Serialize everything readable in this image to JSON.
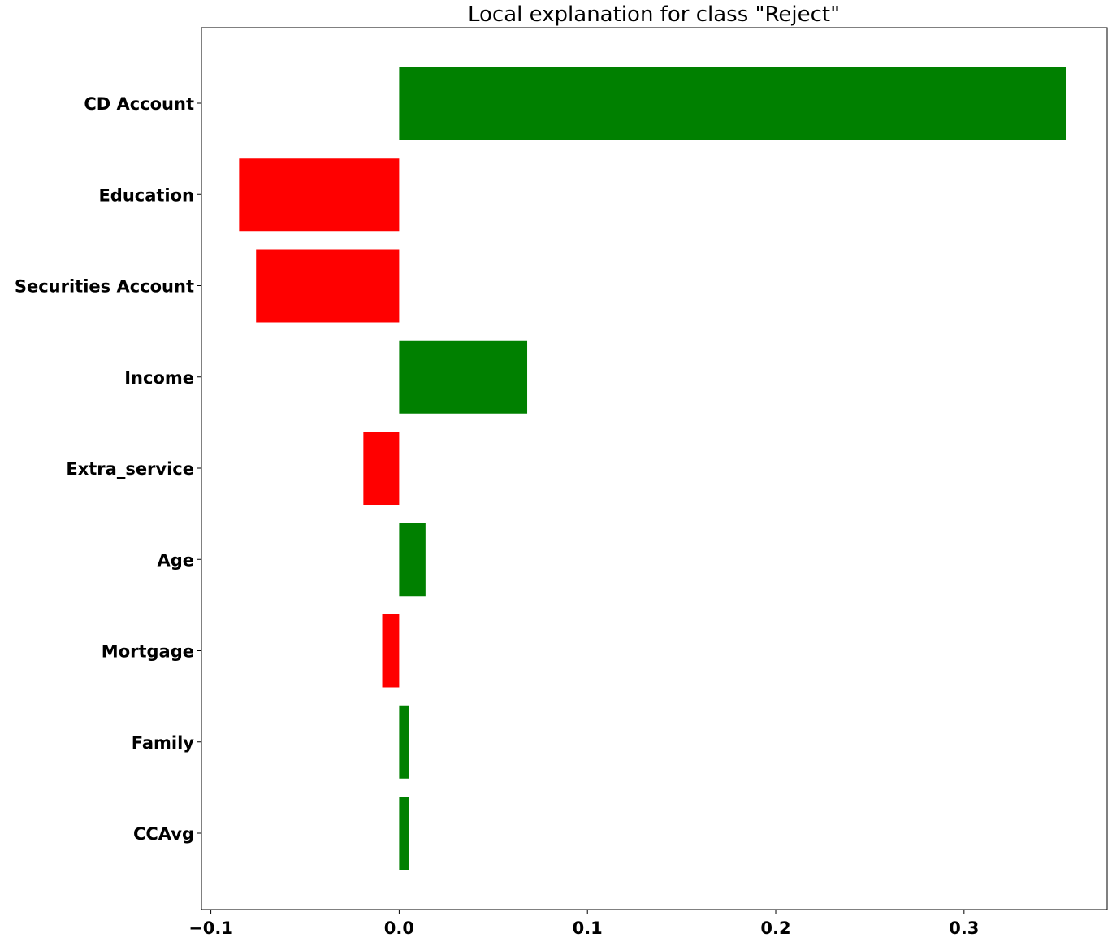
{
  "chart_data": {
    "type": "bar",
    "orientation": "horizontal",
    "title": "Local explanation for class \"Reject\"",
    "xlabel": "",
    "ylabel": "",
    "xlim": [
      -0.105,
      0.376
    ],
    "xticks": [
      -0.1,
      0.0,
      0.1,
      0.2,
      0.3
    ],
    "xtick_labels": [
      "−0.1",
      "0.0",
      "0.1",
      "0.2",
      "0.3"
    ],
    "grid": false,
    "legend": false,
    "categories": [
      "CD Account",
      "Education",
      "Securities Account",
      "Income",
      "Extra_service",
      "Age",
      "Mortgage",
      "Family",
      "CCAvg"
    ],
    "values": [
      0.354,
      -0.085,
      -0.076,
      0.068,
      -0.019,
      0.014,
      -0.009,
      0.005,
      0.005
    ],
    "colors": {
      "positive": "#008000",
      "negative": "#ff0000"
    }
  }
}
